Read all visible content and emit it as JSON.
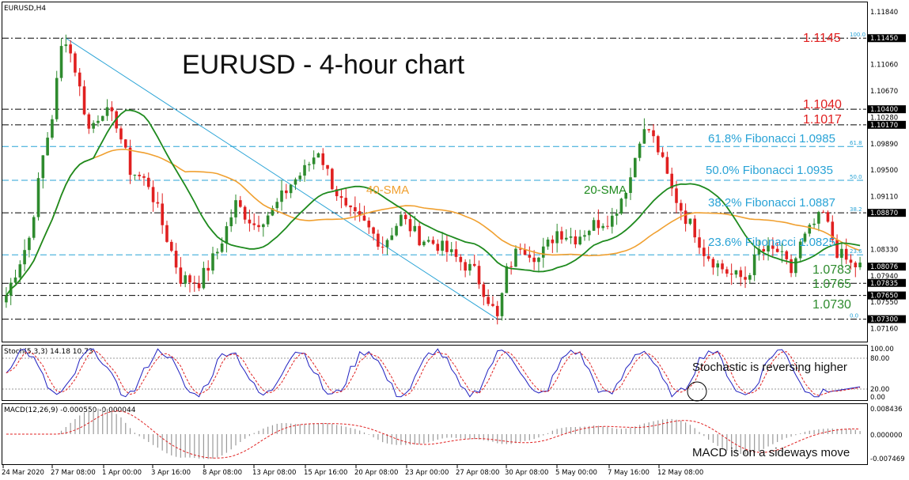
{
  "header": {
    "symbol": "EURUSD,H4",
    "title": "EURUSD - 4-hour chart"
  },
  "indicators": {
    "stoch_label": "Stoch(5,3,3) 14.18 10.73",
    "macd_label": "MACD(12,26,9) -0.000550 -0.000044",
    "stoch_note": "Stochastic is reversing higher",
    "macd_note": "MACD is on a sideways move",
    "stoch_ticks": [
      "100.00",
      "80.00",
      "20.00",
      "0.00"
    ],
    "macd_ticks": [
      "0.008436",
      "0.000000",
      "-0.007469"
    ]
  },
  "colors": {
    "bull": "#2e8b2e",
    "bear": "#e02020",
    "sma20": "#1e8a1e",
    "sma40": "#f0a030",
    "fib": "#29a3d6",
    "grid": "#000000"
  },
  "levels": {
    "r1145": "1.1145",
    "r1040": "1.1040",
    "r1017": "1.1017",
    "fib618": "61.8% Fibonacci 1.0985",
    "fib500": "50.0% Fibonacci 1.0935",
    "fib382": "38.2% Fibonacci 1.0887",
    "fib236": "23.6% Fibonacci 1.0825",
    "s0783": "1.0783",
    "s0765": "1.0765",
    "s0730": "1.0730",
    "fib_small": [
      "100.0",
      "61.8",
      "50.0",
      "38.2",
      "23.6",
      "0.0"
    ]
  },
  "sma_labels": {
    "sma20": "20-SMA",
    "sma40": "40-SMA"
  },
  "chart_data": {
    "type": "candlestick",
    "title": "EURUSD - 4-hour chart",
    "price_ticks": [
      "1.11840",
      "1.11450",
      "1.11060",
      "1.10670",
      "1.10400",
      "1.10280",
      "1.10170",
      "1.09890",
      "1.09500",
      "1.09110",
      "1.08870",
      "1.08330",
      "1.08076",
      "1.07940",
      "1.07835",
      "1.07650",
      "1.07550",
      "1.07300",
      "1.07160"
    ],
    "price_range": [
      1.0705,
      1.1192
    ],
    "highlighted_ticks": [
      "1.11450",
      "1.10400",
      "1.10170",
      "1.08870",
      "1.08076",
      "1.07835",
      "1.07650",
      "1.07300"
    ],
    "x_labels": [
      "24 Mar 2020",
      "27 Mar 08:00",
      "1 Apr 00:00",
      "3 Apr 16:00",
      "8 Apr 08:00",
      "13 Apr 08:00",
      "15 Apr 16:00",
      "20 Apr 08:00",
      "23 Apr 00:00",
      "27 Apr 08:00",
      "30 Apr 08:00",
      "5 May 00:00",
      "7 May 16:00",
      "12 May 08:00"
    ],
    "horizontal_levels": [
      1.1145,
      1.104,
      1.1017,
      1.0985,
      1.0935,
      1.0887,
      1.0825,
      1.0783,
      1.0765,
      1.073
    ],
    "price_anchors": [
      [
        0,
        1.0765
      ],
      [
        2,
        1.08
      ],
      [
        5,
        1.085
      ],
      [
        8,
        1.097
      ],
      [
        10,
        1.103
      ],
      [
        12,
        1.113
      ],
      [
        13,
        1.1145
      ],
      [
        15,
        1.11
      ],
      [
        18,
        1.101
      ],
      [
        21,
        1.104
      ],
      [
        24,
        1.102
      ],
      [
        27,
        1.095
      ],
      [
        31,
        1.093
      ],
      [
        35,
        1.085
      ],
      [
        38,
        1.079
      ],
      [
        42,
        1.0785
      ],
      [
        46,
        1.083
      ],
      [
        50,
        1.09
      ],
      [
        54,
        1.087
      ],
      [
        58,
        1.089
      ],
      [
        62,
        1.093
      ],
      [
        65,
        1.095
      ],
      [
        68,
        1.098
      ],
      [
        71,
        1.093
      ],
      [
        74,
        1.089
      ],
      [
        78,
        1.087
      ],
      [
        82,
        1.084
      ],
      [
        86,
        1.088
      ],
      [
        90,
        1.085
      ],
      [
        94,
        1.084
      ],
      [
        98,
        1.082
      ],
      [
        102,
        1.08
      ],
      [
        105,
        1.076
      ],
      [
        107,
        1.073
      ],
      [
        109,
        1.08
      ],
      [
        112,
        1.084
      ],
      [
        116,
        1.082
      ],
      [
        120,
        1.086
      ],
      [
        124,
        1.085
      ],
      [
        128,
        1.087
      ],
      [
        132,
        1.088
      ],
      [
        136,
        1.094
      ],
      [
        138,
        1.1
      ],
      [
        140,
        1.101
      ],
      [
        142,
        1.098
      ],
      [
        145,
        1.092
      ],
      [
        148,
        1.088
      ],
      [
        150,
        1.086
      ],
      [
        152,
        1.083
      ],
      [
        155,
        1.081
      ],
      [
        158,
        1.0795
      ],
      [
        161,
        1.079
      ],
      [
        164,
        1.083
      ],
      [
        168,
        1.083
      ],
      [
        171,
        1.08
      ],
      [
        173,
        1.084
      ],
      [
        176,
        1.087
      ],
      [
        178,
        1.0885
      ],
      [
        181,
        1.083
      ],
      [
        184,
        1.081
      ],
      [
        186,
        1.0808
      ]
    ]
  }
}
